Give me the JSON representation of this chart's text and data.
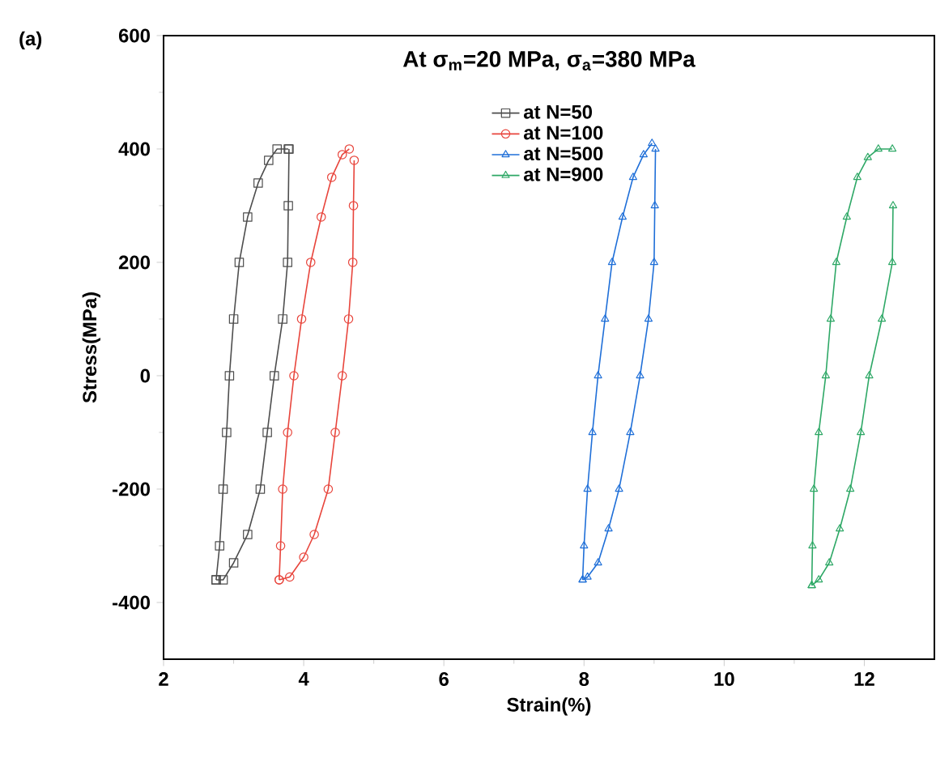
{
  "chart_data": {
    "type": "line",
    "title": "At σ$_{m}$=20 MPa, σ$_{a}$=380 MPa",
    "xlabel": "Strain(%)",
    "ylabel": "Stress(MPa)",
    "annotations": [
      "(a)"
    ],
    "xlim": [
      2,
      13
    ],
    "xticks": [
      2,
      4,
      6,
      8,
      10,
      12
    ],
    "ylim": [
      -500,
      600
    ],
    "yticks": [
      -400,
      -200,
      0,
      200,
      400,
      600
    ],
    "grid": false,
    "legend": "top",
    "line_style": "solid",
    "series": [
      {
        "name": "at N=50",
        "color": "#4d4d4d",
        "marker": "square",
        "x": [
          2.75,
          2.8,
          2.85,
          2.9,
          2.94,
          3.0,
          3.08,
          3.2,
          3.35,
          3.5,
          3.62,
          3.78
        ],
        "values": [
          -360,
          -300,
          -200,
          -100,
          0,
          100,
          200,
          280,
          340,
          380,
          400,
          400
        ]
      },
      {
        "color": "#4d4d4d",
        "marker": "square",
        "x": [
          2.75,
          2.85,
          3.0,
          3.2,
          3.38,
          3.48,
          3.58,
          3.7,
          3.77,
          3.78,
          3.79
        ],
        "values": [
          -360,
          -360,
          -330,
          -280,
          -200,
          -100,
          0,
          100,
          200,
          300,
          400
        ]
      },
      {
        "name": "at N=100",
        "color": "#e8453c",
        "marker": "circle",
        "x": [
          3.65,
          3.67,
          3.7,
          3.77,
          3.86,
          3.97,
          4.1,
          4.25,
          4.4,
          4.55,
          4.65
        ],
        "values": [
          -360,
          -300,
          -200,
          -100,
          0,
          100,
          200,
          280,
          350,
          390,
          400
        ]
      },
      {
        "color": "#e8453c",
        "marker": "circle",
        "x": [
          3.65,
          3.8,
          4.0,
          4.15,
          4.35,
          4.45,
          4.55,
          4.64,
          4.7,
          4.71,
          4.72
        ],
        "values": [
          -360,
          -355,
          -320,
          -280,
          -200,
          -100,
          0,
          100,
          200,
          300,
          380
        ]
      },
      {
        "name": "at N=500",
        "color": "#1f6fd8",
        "marker": "triangle",
        "x": [
          7.98,
          8.0,
          8.05,
          8.12,
          8.2,
          8.3,
          8.4,
          8.55,
          8.7,
          8.85,
          8.97
        ],
        "values": [
          -360,
          -300,
          -200,
          -100,
          0,
          100,
          200,
          280,
          350,
          390,
          410
        ]
      },
      {
        "color": "#1f6fd8",
        "marker": "triangle",
        "x": [
          7.98,
          8.05,
          8.2,
          8.35,
          8.5,
          8.66,
          8.8,
          8.92,
          9.0,
          9.01,
          9.02
        ],
        "values": [
          -360,
          -355,
          -330,
          -270,
          -200,
          -100,
          0,
          100,
          200,
          300,
          400
        ]
      },
      {
        "name": "at N=900",
        "color": "#2ea866",
        "marker": "triangle",
        "x": [
          11.25,
          11.26,
          11.28,
          11.35,
          11.45,
          11.52,
          11.6,
          11.75,
          11.9,
          12.05,
          12.2,
          12.4
        ],
        "values": [
          -370,
          -300,
          -200,
          -100,
          0,
          100,
          200,
          280,
          350,
          385,
          400,
          400
        ]
      },
      {
        "color": "#2ea866",
        "marker": "triangle",
        "x": [
          11.25,
          11.35,
          11.5,
          11.65,
          11.8,
          11.95,
          12.07,
          12.25,
          12.4,
          12.41
        ],
        "values": [
          -370,
          -360,
          -330,
          -270,
          -200,
          -100,
          0,
          100,
          200,
          300
        ]
      }
    ]
  }
}
